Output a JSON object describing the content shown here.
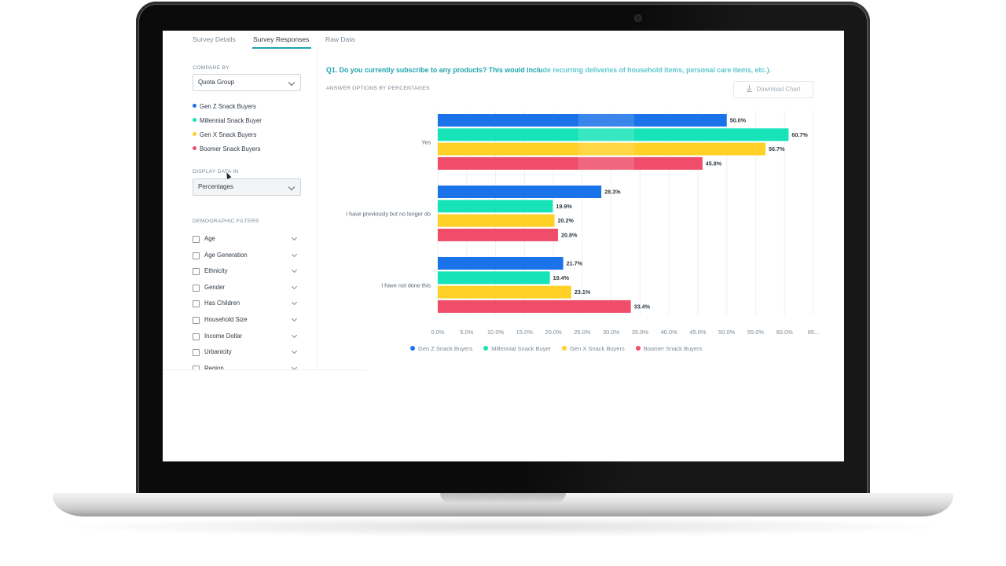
{
  "tabs": [
    {
      "label": "Survey Details",
      "active": false
    },
    {
      "label": "Survey Responses",
      "active": true
    },
    {
      "label": "Raw Data",
      "active": false
    }
  ],
  "sidebar": {
    "compare_by_label": "COMPARE BY",
    "compare_by_value": "Quota Group",
    "groups": [
      {
        "label": "Gen Z Snack Buyers",
        "color": "#1a73e8"
      },
      {
        "label": "Millennial Snack Buyer",
        "color": "#17e3b8"
      },
      {
        "label": "Gen X Snack Buyers",
        "color": "#ffd126"
      },
      {
        "label": "Boomer Snack Buyers",
        "color": "#ef4d6a"
      }
    ],
    "display_label": "DISPLAY DATA IN",
    "display_value": "Percentages",
    "filters_label": "DEMOGRAPHIC FILTERS",
    "filters": [
      "Age",
      "Age Generation",
      "Ethnicity",
      "Gender",
      "Has Children",
      "Household Size",
      "Income Dollar",
      "Urbanicity",
      "Region"
    ]
  },
  "main": {
    "question_bold": "Q1. Do you currently subscribe to any products? This would inclu",
    "question_rest": "de recurring deliveries of household items, personal care items, etc.).",
    "subtitle": "ANSWER OPTIONS BY PERCENTAGES",
    "download_label": "Download Chart"
  },
  "chart_data": {
    "type": "bar",
    "orientation": "horizontal",
    "categories": [
      "Yes",
      "I have previously but no longer do",
      "I have not done this"
    ],
    "series": [
      {
        "name": "Gen Z Snack Buyers",
        "color": "#1a73e8",
        "values": [
          50.0,
          28.3,
          21.7
        ]
      },
      {
        "name": "Millennial Snack Buyer",
        "color": "#17e3b8",
        "values": [
          60.7,
          19.9,
          19.4
        ]
      },
      {
        "name": "Gen X Snack Buyers",
        "color": "#ffd126",
        "values": [
          56.7,
          20.2,
          23.1
        ]
      },
      {
        "name": "Boomer Snack Buyers",
        "color": "#ef4d6a",
        "values": [
          45.8,
          20.8,
          33.4
        ]
      }
    ],
    "data_labels": [
      [
        "50.0%",
        "28.3%",
        "21.7%"
      ],
      [
        "60.7%",
        "19.9%",
        "19.4%"
      ],
      [
        "56.7%",
        "20.2%",
        "23.1%"
      ],
      [
        "45.8%",
        "20.8%",
        "33.4%"
      ]
    ],
    "x_ticks": [
      "0.0%",
      "5.0%",
      "10.0%",
      "15.0%",
      "20.0%",
      "25.0%",
      "30.0%",
      "35.0%",
      "40.0%",
      "45.0%",
      "50.0%",
      "55.0%",
      "60.0%",
      "65..."
    ],
    "xlim": [
      0,
      65
    ],
    "grid": true,
    "legend_position": "bottom"
  }
}
